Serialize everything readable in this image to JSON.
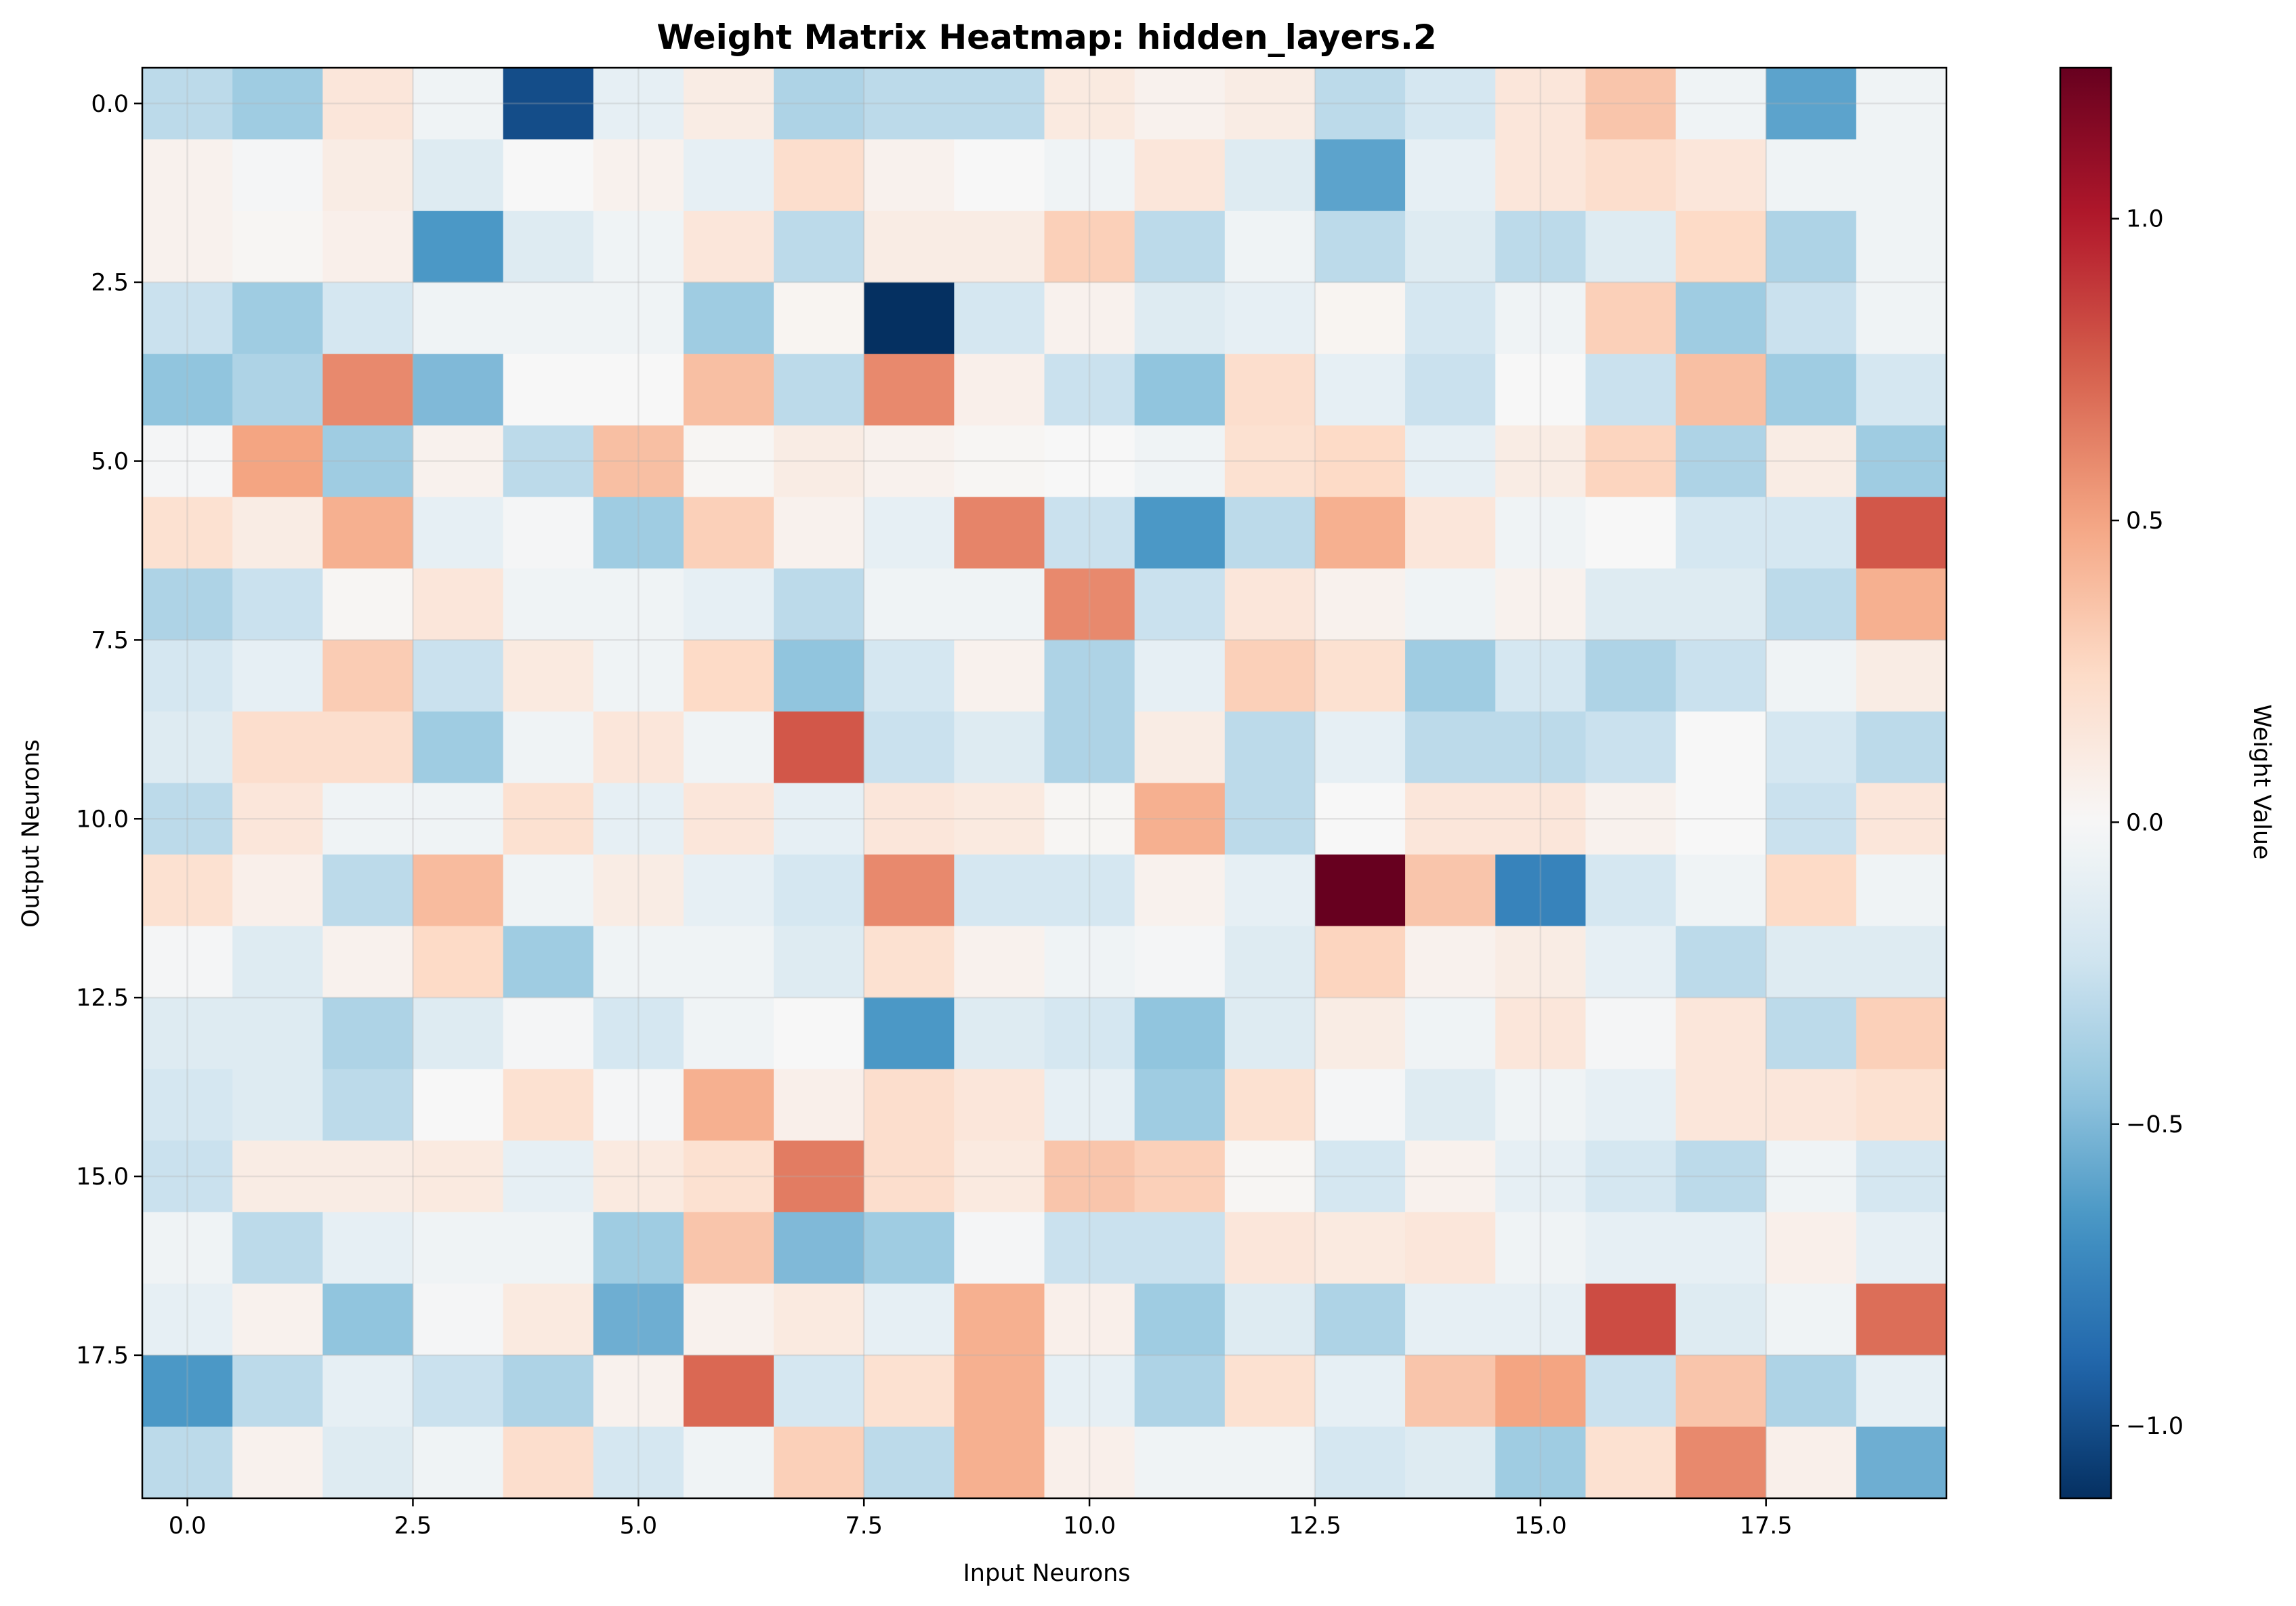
{
  "chart_data": {
    "type": "heatmap",
    "title": "Weight Matrix Heatmap: hidden_layers.2",
    "xlabel": "Input Neurons",
    "ylabel": "Output Neurons",
    "colorbar_label": "Weight Value",
    "colormap": "RdBu_r",
    "vmin": -1.12,
    "vmax": 1.25,
    "x_ticks": [
      "0.0",
      "2.5",
      "5.0",
      "7.5",
      "10.0",
      "12.5",
      "15.0",
      "17.5"
    ],
    "y_ticks": [
      "0.0",
      "2.5",
      "5.0",
      "7.5",
      "10.0",
      "12.5",
      "15.0",
      "17.5"
    ],
    "colorbar_ticks": [
      "−1.0",
      "−0.5",
      "0.0",
      "0.5",
      "1.0"
    ],
    "grid": true,
    "rows": 20,
    "cols": 20,
    "values": [
      [
        -0.3,
        -0.4,
        0.15,
        -0.05,
        -1.0,
        -0.1,
        0.1,
        -0.35,
        -0.3,
        -0.3,
        0.12,
        0.05,
        0.1,
        -0.3,
        -0.2,
        0.15,
        0.35,
        -0.05,
        -0.6,
        -0.05
      ],
      [
        0.05,
        -0.02,
        0.1,
        -0.15,
        0.0,
        0.05,
        -0.1,
        0.22,
        0.05,
        0.0,
        -0.05,
        0.15,
        -0.15,
        -0.6,
        -0.1,
        0.15,
        0.22,
        0.15,
        -0.05,
        -0.05
      ],
      [
        0.05,
        0.02,
        0.07,
        -0.65,
        -0.15,
        -0.05,
        0.15,
        -0.3,
        0.1,
        0.1,
        0.3,
        -0.3,
        -0.05,
        -0.3,
        -0.15,
        -0.3,
        -0.15,
        0.25,
        -0.35,
        -0.05
      ],
      [
        -0.25,
        -0.4,
        -0.2,
        -0.05,
        -0.05,
        -0.05,
        -0.4,
        0.03,
        -1.12,
        -0.2,
        0.05,
        -0.15,
        -0.1,
        0.03,
        -0.2,
        -0.05,
        0.3,
        -0.4,
        -0.25,
        -0.05
      ],
      [
        -0.45,
        -0.35,
        0.6,
        -0.5,
        0.0,
        0.0,
        0.38,
        -0.3,
        0.6,
        0.07,
        -0.25,
        -0.45,
        0.22,
        -0.1,
        -0.25,
        0.0,
        -0.25,
        0.38,
        -0.4,
        -0.2
      ],
      [
        -0.02,
        0.5,
        -0.4,
        0.05,
        -0.3,
        0.38,
        0.02,
        0.1,
        0.05,
        0.02,
        0.0,
        -0.05,
        0.2,
        0.25,
        -0.1,
        0.1,
        0.28,
        -0.35,
        0.1,
        -0.4
      ],
      [
        0.2,
        0.1,
        0.45,
        -0.1,
        -0.02,
        -0.4,
        0.3,
        0.05,
        -0.1,
        0.62,
        -0.25,
        -0.65,
        -0.3,
        0.45,
        0.15,
        -0.05,
        0.0,
        -0.2,
        -0.2,
        0.78
      ],
      [
        -0.35,
        -0.25,
        0.02,
        0.15,
        -0.05,
        -0.05,
        -0.1,
        -0.3,
        -0.05,
        -0.05,
        0.6,
        -0.25,
        0.15,
        0.05,
        -0.05,
        0.05,
        -0.15,
        -0.15,
        -0.3,
        0.45
      ],
      [
        -0.2,
        -0.1,
        0.32,
        -0.25,
        0.12,
        -0.05,
        0.25,
        -0.45,
        -0.2,
        0.05,
        -0.35,
        -0.1,
        0.3,
        0.2,
        -0.4,
        -0.2,
        -0.35,
        -0.25,
        -0.05,
        0.1
      ],
      [
        -0.15,
        0.22,
        0.22,
        -0.4,
        -0.05,
        0.15,
        -0.05,
        0.78,
        -0.25,
        -0.15,
        -0.35,
        0.1,
        -0.3,
        -0.1,
        -0.3,
        -0.3,
        -0.25,
        0.0,
        -0.2,
        -0.3
      ],
      [
        -0.3,
        0.15,
        -0.05,
        -0.05,
        0.2,
        -0.1,
        0.15,
        -0.1,
        0.15,
        0.12,
        0.02,
        0.45,
        -0.3,
        0.0,
        0.15,
        0.15,
        0.05,
        0.0,
        -0.25,
        0.15
      ],
      [
        0.2,
        0.07,
        -0.3,
        0.4,
        -0.05,
        0.1,
        -0.1,
        -0.2,
        0.6,
        -0.2,
        -0.2,
        0.05,
        -0.1,
        1.25,
        0.35,
        -0.75,
        -0.2,
        -0.05,
        0.25,
        -0.05
      ],
      [
        -0.02,
        -0.15,
        0.05,
        0.25,
        -0.4,
        -0.05,
        -0.05,
        -0.15,
        0.2,
        0.05,
        -0.05,
        -0.02,
        -0.15,
        0.28,
        0.05,
        0.1,
        -0.1,
        -0.3,
        -0.15,
        -0.15
      ],
      [
        -0.15,
        -0.15,
        -0.35,
        -0.15,
        -0.02,
        -0.2,
        -0.05,
        0.0,
        -0.65,
        -0.15,
        -0.2,
        -0.45,
        -0.15,
        0.1,
        -0.05,
        0.15,
        -0.02,
        0.15,
        -0.3,
        0.3
      ],
      [
        -0.2,
        -0.15,
        -0.3,
        0.0,
        0.2,
        -0.02,
        0.45,
        0.07,
        0.22,
        0.15,
        -0.1,
        -0.4,
        0.2,
        -0.02,
        -0.15,
        -0.05,
        -0.1,
        0.15,
        0.15,
        0.2
      ],
      [
        -0.25,
        0.1,
        0.1,
        0.12,
        -0.1,
        0.12,
        0.2,
        0.65,
        0.22,
        0.12,
        0.35,
        0.3,
        0.02,
        -0.2,
        0.05,
        -0.1,
        -0.2,
        -0.3,
        -0.05,
        -0.2
      ],
      [
        -0.05,
        -0.3,
        -0.1,
        -0.05,
        -0.05,
        -0.4,
        0.35,
        -0.5,
        -0.4,
        -0.02,
        -0.25,
        -0.25,
        0.15,
        0.12,
        0.15,
        -0.05,
        -0.1,
        -0.1,
        0.07,
        -0.1
      ],
      [
        -0.1,
        0.05,
        -0.45,
        -0.02,
        0.12,
        -0.55,
        0.05,
        0.12,
        -0.1,
        0.45,
        0.07,
        -0.4,
        -0.15,
        -0.35,
        -0.1,
        -0.1,
        0.82,
        -0.15,
        -0.05,
        0.7
      ],
      [
        -0.65,
        -0.3,
        -0.1,
        -0.25,
        -0.35,
        0.05,
        0.72,
        -0.2,
        0.2,
        0.45,
        -0.1,
        -0.35,
        0.2,
        -0.1,
        0.35,
        0.5,
        -0.25,
        0.35,
        -0.35,
        -0.1
      ],
      [
        -0.3,
        0.05,
        -0.15,
        -0.05,
        0.22,
        -0.2,
        -0.05,
        0.3,
        -0.3,
        0.45,
        0.07,
        -0.05,
        -0.05,
        -0.2,
        -0.15,
        -0.4,
        0.2,
        0.6,
        0.07,
        -0.55
      ]
    ]
  }
}
